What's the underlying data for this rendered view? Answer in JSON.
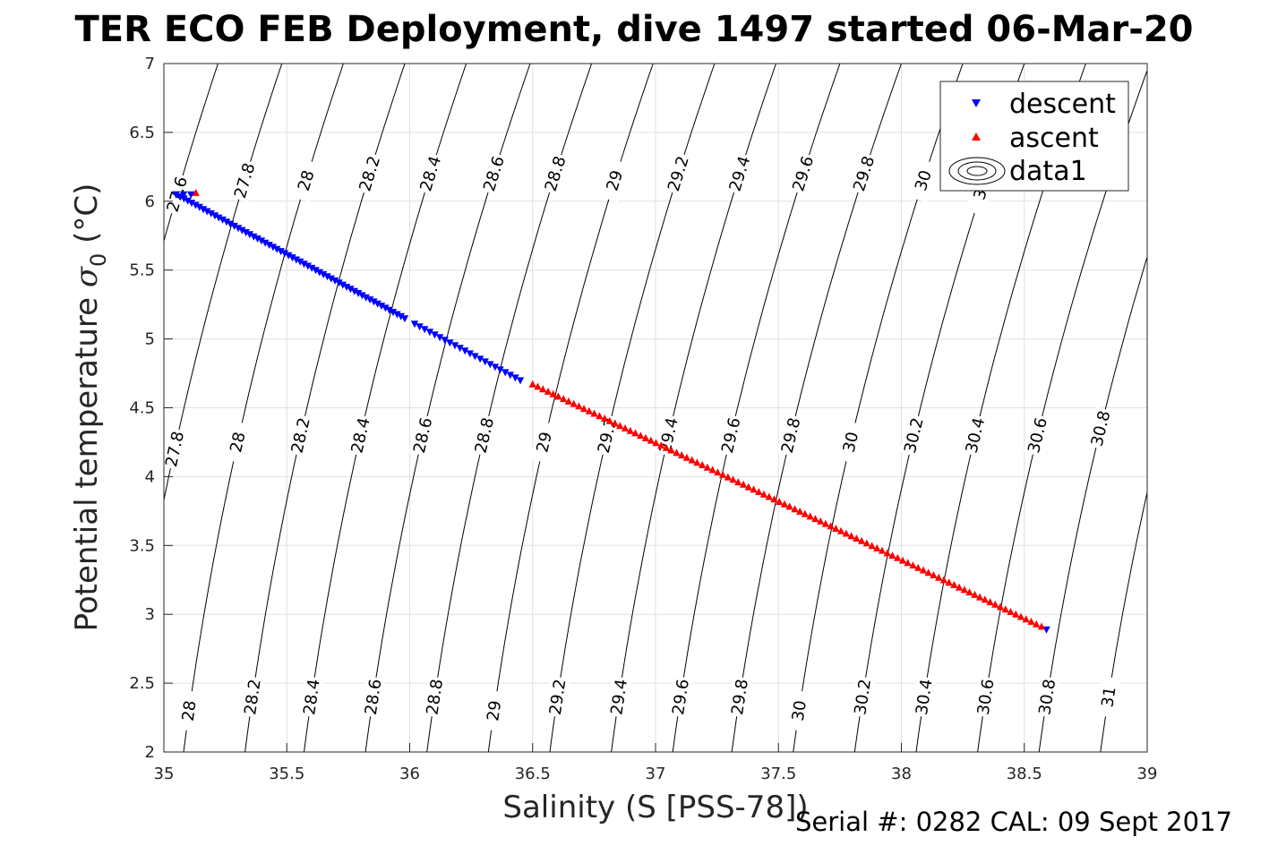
{
  "chart_data": {
    "type": "scatter",
    "title": "TER ECO FEB Deployment, dive 1497 started 06-Mar-20",
    "xlabel": "Salinity (S [PSS-78])",
    "ylabel_main": "Potential temperature ",
    "ylabel_symbol": "σ",
    "ylabel_sub": "0",
    "ylabel_unit": " (°C)",
    "xlim": [
      35,
      39
    ],
    "ylim": [
      2,
      7
    ],
    "xticks": [
      "35",
      "35.5",
      "36",
      "36.5",
      "37",
      "37.5",
      "38",
      "38.5",
      "39"
    ],
    "yticks": [
      "2",
      "2.5",
      "3",
      "3.5",
      "4",
      "4.5",
      "5",
      "5.5",
      "6",
      "6.5",
      "7"
    ],
    "grid": true,
    "legend_position": "top-right",
    "legend": [
      "descent",
      "ascent",
      "data1"
    ],
    "series": [
      {
        "name": "descent",
        "color": "#0000ff",
        "marker": "triangle-down",
        "segments": [
          {
            "from": [
              35.05,
              6.05
            ],
            "to": [
              35.98,
              5.15
            ],
            "n": 60
          },
          {
            "from": [
              36.02,
              5.11
            ],
            "to": [
              36.45,
              4.7
            ],
            "n": 22
          }
        ],
        "points": [
          [
            35.05,
            6.05
          ],
          [
            35.08,
            6.05
          ],
          [
            35.11,
            6.05
          ],
          [
            38.59,
            2.89
          ]
        ]
      },
      {
        "name": "ascent",
        "color": "#ff0000",
        "marker": "triangle-up",
        "segments": [
          {
            "from": [
              36.5,
              4.67
            ],
            "to": [
              38.57,
              2.91
            ],
            "n": 100
          }
        ],
        "points": [
          [
            35.13,
            6.06
          ]
        ]
      }
    ],
    "contours": {
      "name": "data1",
      "levels": [
        {
          "value": "27.6",
          "x_bottom": 34.58,
          "x_top": 35.22
        },
        {
          "value": "27.8",
          "x_bottom": 34.83,
          "x_top": 35.48
        },
        {
          "value": "28",
          "x_bottom": 35.08,
          "x_top": 35.73
        },
        {
          "value": "28.2",
          "x_bottom": 35.33,
          "x_top": 35.98
        },
        {
          "value": "28.4",
          "x_bottom": 35.57,
          "x_top": 36.23
        },
        {
          "value": "28.6",
          "x_bottom": 35.82,
          "x_top": 36.49
        },
        {
          "value": "28.8",
          "x_bottom": 36.07,
          "x_top": 36.74
        },
        {
          "value": "29",
          "x_bottom": 36.32,
          "x_top": 36.99
        },
        {
          "value": "29.2",
          "x_bottom": 36.57,
          "x_top": 37.24
        },
        {
          "value": "29.4",
          "x_bottom": 36.82,
          "x_top": 37.49
        },
        {
          "value": "29.6",
          "x_bottom": 37.07,
          "x_top": 37.75
        },
        {
          "value": "29.8",
          "x_bottom": 37.31,
          "x_top": 38.0
        },
        {
          "value": "30",
          "x_bottom": 37.56,
          "x_top": 38.25
        },
        {
          "value": "30.2",
          "x_bottom": 37.81,
          "x_top": 38.5
        },
        {
          "value": "30.4",
          "x_bottom": 38.06,
          "x_top": 38.75
        },
        {
          "value": "30.6",
          "x_bottom": 38.31,
          "x_top": 39.01
        },
        {
          "value": "30.8",
          "x_bottom": 38.56,
          "x_top": 39.26
        },
        {
          "value": "31",
          "x_bottom": 38.81,
          "x_top": 39.51
        }
      ],
      "labels": [
        {
          "value": "27.6",
          "y": 6.05
        },
        {
          "value": "27.8",
          "y": 6.15
        },
        {
          "value": "28",
          "y": 6.15
        },
        {
          "value": "28.2",
          "y": 6.2
        },
        {
          "value": "28.4",
          "y": 6.2
        },
        {
          "value": "28.6",
          "y": 6.2
        },
        {
          "value": "28.8",
          "y": 6.2
        },
        {
          "value": "29",
          "y": 6.15
        },
        {
          "value": "29.2",
          "y": 6.2
        },
        {
          "value": "29.4",
          "y": 6.2
        },
        {
          "value": "29.6",
          "y": 6.2
        },
        {
          "value": "29.8",
          "y": 6.2
        },
        {
          "value": "30",
          "y": 6.15
        },
        {
          "value": "3",
          "y": 6.05
        },
        {
          "value": "27.8",
          "y": 4.2
        },
        {
          "value": "28",
          "y": 4.25
        },
        {
          "value": "28.2",
          "y": 4.3
        },
        {
          "value": "28.4",
          "y": 4.3
        },
        {
          "value": "28.6",
          "y": 4.3
        },
        {
          "value": "28.8",
          "y": 4.3
        },
        {
          "value": "29",
          "y": 4.25
        },
        {
          "value": "29.2",
          "y": 4.3
        },
        {
          "value": "29.4",
          "y": 4.3
        },
        {
          "value": "29.6",
          "y": 4.3
        },
        {
          "value": "29.8",
          "y": 4.3
        },
        {
          "value": "30",
          "y": 4.25
        },
        {
          "value": "30.2",
          "y": 4.3
        },
        {
          "value": "30.4",
          "y": 4.3
        },
        {
          "value": "30.6",
          "y": 4.3
        },
        {
          "value": "30.8",
          "y": 4.35
        },
        {
          "value": "28",
          "y": 2.3
        },
        {
          "value": "28.2",
          "y": 2.4
        },
        {
          "value": "28.4",
          "y": 2.4
        },
        {
          "value": "28.6",
          "y": 2.4
        },
        {
          "value": "28.8",
          "y": 2.4
        },
        {
          "value": "29",
          "y": 2.3
        },
        {
          "value": "29.2",
          "y": 2.4
        },
        {
          "value": "29.4",
          "y": 2.4
        },
        {
          "value": "29.6",
          "y": 2.4
        },
        {
          "value": "29.8",
          "y": 2.4
        },
        {
          "value": "30",
          "y": 2.3
        },
        {
          "value": "30.2",
          "y": 2.4
        },
        {
          "value": "30.4",
          "y": 2.4
        },
        {
          "value": "30.6",
          "y": 2.4
        },
        {
          "value": "30.8",
          "y": 2.4
        },
        {
          "value": "31",
          "y": 2.4
        }
      ]
    },
    "footer": "Serial #: 0282  CAL: 09 Sept 2017"
  }
}
